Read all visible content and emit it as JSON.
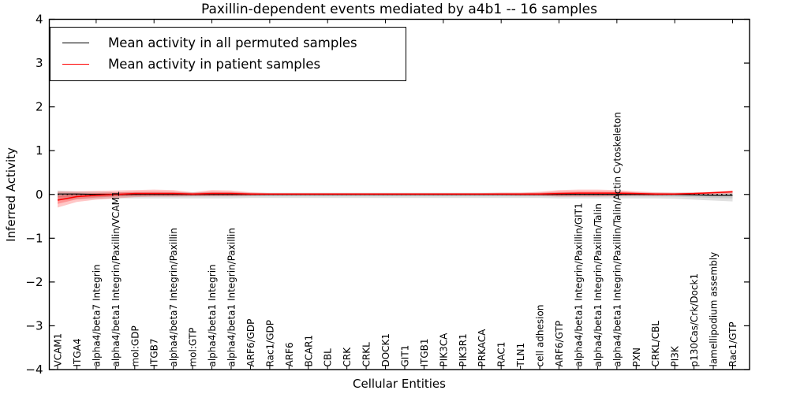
{
  "title": "Paxillin-dependent events mediated by a4b1 -- 16 samples",
  "legend": {
    "entries": [
      {
        "label": "Mean activity in all permuted samples",
        "color": "#000000"
      },
      {
        "label": "Mean activity in patient samples",
        "color": "#ff0000"
      }
    ]
  },
  "colors": {
    "permuted_line": "#000000",
    "patient_line": "#ff0000",
    "permuted_band": "rgba(0,0,0,0.12)",
    "patient_band": "rgba(255,0,0,0.22)",
    "axis": "#000000",
    "background": "#ffffff"
  },
  "chart_data": {
    "type": "line",
    "title": "Paxillin-dependent events mediated by a4b1 -- 16 samples",
    "xlabel": "Cellular Entities",
    "ylabel": "Inferred Activity",
    "ylim": [
      -4,
      4
    ],
    "yticks": [
      4,
      3,
      2,
      1,
      0,
      -1,
      -2,
      -3,
      -4
    ],
    "grid": false,
    "legend_position": "upper-left",
    "zero_line": {
      "y": 0,
      "style": "dotted",
      "color": "#000000"
    },
    "categories": [
      "VCAM1",
      "ITGA4",
      "alpha4/beta7 Integrin",
      "alpha4/beta1 Integrin/Paxillin/VCAM1",
      "mol:GDP",
      "ITGB7",
      "alpha4/beta7 Integrin/Paxillin",
      "mol:GTP",
      "alpha4/beta1 Integrin",
      "alpha4/beta1 Integrin/Paxillin",
      "ARF6/GDP",
      "Rac1/GDP",
      "ARF6",
      "BCAR1",
      "CBL",
      "CRK",
      "CRKL",
      "DOCK1",
      "GIT1",
      "ITGB1",
      "PIK3CA",
      "PIK3R1",
      "PRKACA",
      "RAC1",
      "TLN1",
      "cell adhesion",
      "ARF6/GTP",
      "alpha4/beta1 Integrin/Paxillin/GIT1",
      "alpha4/beta1 Integrin/Paxillin/Talin",
      "alpha4/beta1 Integrin/Paxillin/Talin/Actin Cytoskeleton",
      "PXN",
      "CRKL/CBL",
      "PI3K",
      "p130Cas/Crk/Dock1",
      "lamellipodium assembly",
      "Rac1/GTP"
    ],
    "series": [
      {
        "name": "Mean activity in all permuted samples",
        "color": "#000000",
        "values": [
          0.01,
          0.01,
          0.0,
          0.0,
          0.0,
          0.0,
          0.0,
          0.0,
          0.0,
          0.0,
          0.0,
          0.0,
          0.0,
          0.0,
          0.0,
          0.0,
          0.0,
          0.0,
          0.0,
          0.0,
          0.0,
          0.0,
          0.0,
          0.0,
          0.0,
          0.0,
          0.0,
          0.0,
          0.0,
          0.0,
          0.0,
          0.0,
          0.0,
          -0.01,
          -0.02,
          -0.02
        ],
        "band_high": [
          0.09,
          0.07,
          0.06,
          0.05,
          0.05,
          0.05,
          0.05,
          0.05,
          0.05,
          0.05,
          0.04,
          0.04,
          0.04,
          0.04,
          0.04,
          0.04,
          0.04,
          0.04,
          0.04,
          0.04,
          0.04,
          0.04,
          0.04,
          0.04,
          0.04,
          0.04,
          0.04,
          0.04,
          0.04,
          0.04,
          0.04,
          0.04,
          0.04,
          0.04,
          0.04,
          0.05
        ],
        "band_low": [
          -0.13,
          -0.11,
          -0.1,
          -0.09,
          -0.09,
          -0.09,
          -0.09,
          -0.09,
          -0.09,
          -0.09,
          -0.08,
          -0.08,
          -0.08,
          -0.08,
          -0.08,
          -0.08,
          -0.08,
          -0.08,
          -0.08,
          -0.08,
          -0.08,
          -0.08,
          -0.08,
          -0.08,
          -0.08,
          -0.08,
          -0.09,
          -0.09,
          -0.09,
          -0.09,
          -0.09,
          -0.09,
          -0.1,
          -0.12,
          -0.14,
          -0.16
        ]
      },
      {
        "name": "Mean activity in patient samples",
        "color": "#ff0000",
        "values": [
          -0.13,
          -0.05,
          -0.02,
          0.0,
          0.02,
          0.02,
          0.02,
          0.01,
          0.02,
          0.02,
          0.01,
          0.01,
          0.01,
          0.01,
          0.01,
          0.01,
          0.01,
          0.01,
          0.01,
          0.01,
          0.01,
          0.01,
          0.01,
          0.01,
          0.01,
          0.01,
          0.02,
          0.03,
          0.03,
          0.03,
          0.02,
          0.01,
          0.01,
          0.02,
          0.04,
          0.06
        ],
        "band_high": [
          0.07,
          0.07,
          0.08,
          0.09,
          0.1,
          0.11,
          0.1,
          0.05,
          0.1,
          0.09,
          0.05,
          0.03,
          0.03,
          0.03,
          0.03,
          0.03,
          0.03,
          0.03,
          0.03,
          0.03,
          0.03,
          0.03,
          0.03,
          0.04,
          0.04,
          0.06,
          0.1,
          0.11,
          0.11,
          0.1,
          0.07,
          0.05,
          0.04,
          0.05,
          0.06,
          0.09
        ],
        "band_low": [
          -0.3,
          -0.17,
          -0.12,
          -0.09,
          -0.06,
          -0.05,
          -0.05,
          -0.04,
          -0.04,
          -0.04,
          -0.03,
          -0.02,
          -0.02,
          -0.02,
          -0.02,
          -0.02,
          -0.02,
          -0.02,
          -0.02,
          -0.02,
          -0.02,
          -0.02,
          -0.02,
          -0.02,
          -0.03,
          -0.03,
          -0.05,
          -0.05,
          -0.05,
          -0.04,
          -0.03,
          -0.03,
          -0.02,
          -0.01,
          0.0,
          0.02
        ]
      }
    ]
  }
}
